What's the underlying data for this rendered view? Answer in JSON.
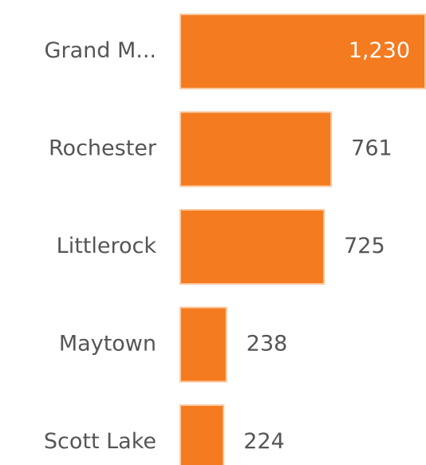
{
  "chart_data": {
    "type": "hbar",
    "categories": [
      "Grand M...",
      "Rochester",
      "Littlerock",
      "Maytown",
      "Scott Lake"
    ],
    "values": [
      1230,
      761,
      725,
      238,
      224
    ],
    "value_labels": [
      "1,230",
      "761",
      "725",
      "238",
      "224"
    ],
    "color": "#f47b20"
  }
}
